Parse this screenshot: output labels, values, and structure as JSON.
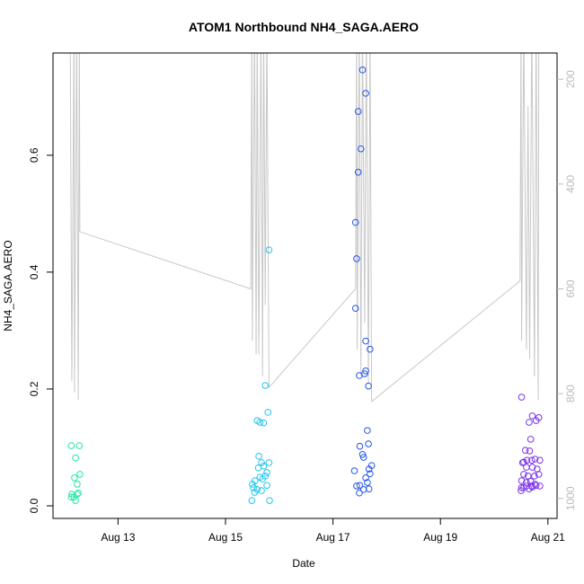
{
  "chart_data": {
    "type": "scatter",
    "title": "ATOM1 Northbound NH4_SAGA.AERO",
    "xlabel": "Date",
    "ylabel": "NH4_SAGA.AERO",
    "xlim": [
      11.79,
      21.17
    ],
    "xticks": [
      {
        "value": 13,
        "label": "Aug 13"
      },
      {
        "value": 15,
        "label": "Aug 15"
      },
      {
        "value": 17,
        "label": "Aug 17"
      },
      {
        "value": 19,
        "label": "Aug 19"
      },
      {
        "value": 21,
        "label": "Aug 21"
      }
    ],
    "ylim": [
      -0.0215,
      0.775
    ],
    "yticks": [
      {
        "value": 0,
        "label": "0.0"
      },
      0.2,
      0.4,
      0.6
    ],
    "y2lim": [
      1038,
      150
    ],
    "y2ticks": [
      200,
      400,
      600,
      800,
      1000
    ],
    "series": [
      {
        "color": "#1fe8a8",
        "x": [
          12.13,
          12.28,
          12.21,
          12.29,
          12.19,
          12.24,
          12.14,
          12.18,
          12.26,
          12.13,
          12.21,
          12.24
        ],
        "values": [
          0.103,
          0.103,
          0.082,
          0.054,
          0.048,
          0.037,
          0.02,
          0.015,
          0.022,
          0.015,
          0.009,
          0.02
        ]
      },
      {
        "color": "#22c4ec",
        "x": [
          15.81,
          15.74,
          15.79,
          15.59,
          15.71,
          15.64,
          15.62,
          15.67,
          15.71,
          15.61,
          15.81,
          15.77,
          15.55,
          15.5,
          15.52,
          15.59,
          15.67,
          15.77,
          15.69,
          15.49,
          15.82,
          15.64,
          15.74,
          15.54
        ],
        "values": [
          0.438,
          0.206,
          0.16,
          0.146,
          0.142,
          0.143,
          0.085,
          0.074,
          0.068,
          0.065,
          0.074,
          0.057,
          0.043,
          0.037,
          0.031,
          0.028,
          0.026,
          0.035,
          0.046,
          0.009,
          0.009,
          0.049,
          0.051,
          0.023
        ]
      },
      {
        "color": "#2456e8",
        "x": [
          17.55,
          17.61,
          17.47,
          17.52,
          17.47,
          17.42,
          17.44,
          17.42,
          17.61,
          17.69,
          17.61,
          17.59,
          17.49,
          17.66,
          17.64,
          17.66,
          17.5,
          17.55,
          17.57,
          17.72,
          17.67,
          17.69,
          17.4,
          17.61,
          17.5,
          17.57,
          17.44,
          17.67,
          17.49,
          17.64
        ],
        "values": [
          0.746,
          0.706,
          0.675,
          0.611,
          0.571,
          0.485,
          0.423,
          0.338,
          0.282,
          0.268,
          0.231,
          0.226,
          0.223,
          0.205,
          0.129,
          0.106,
          0.102,
          0.088,
          0.083,
          0.069,
          0.063,
          0.055,
          0.06,
          0.048,
          0.035,
          0.028,
          0.034,
          0.029,
          0.022,
          0.04
        ]
      },
      {
        "color": "#7a34e8",
        "x": [
          20.51,
          20.71,
          20.83,
          20.78,
          20.65,
          20.68,
          20.58,
          20.66,
          20.55,
          20.61,
          20.7,
          20.76,
          20.85,
          20.53,
          20.6,
          20.71,
          20.8,
          20.55,
          20.63,
          20.75,
          20.83,
          20.51,
          20.6,
          20.68,
          20.76,
          20.85,
          20.51,
          20.6,
          20.7,
          20.78,
          20.5,
          20.55,
          20.65,
          20.71
        ],
        "values": [
          0.186,
          0.154,
          0.151,
          0.146,
          0.143,
          0.114,
          0.095,
          0.094,
          0.075,
          0.078,
          0.078,
          0.08,
          0.078,
          0.074,
          0.066,
          0.066,
          0.063,
          0.054,
          0.051,
          0.051,
          0.054,
          0.043,
          0.04,
          0.042,
          0.037,
          0.034,
          0.031,
          0.034,
          0.034,
          0.035,
          0.026,
          0.031,
          0.029,
          0.032
        ]
      },
      {
        "type": "line",
        "axis": "y2",
        "color": "#c8c8c8",
        "x": [
          12.11,
          12.14,
          12.18,
          12.19,
          12.23,
          12.26,
          12.28,
          12.29,
          15.47,
          15.49,
          15.5,
          15.54,
          15.57,
          15.59,
          15.62,
          15.66,
          15.69,
          15.71,
          15.74,
          15.77,
          15.81,
          17.42,
          17.44,
          17.45,
          17.49,
          17.52,
          17.55,
          17.59,
          17.62,
          17.66,
          17.69,
          17.72,
          20.48,
          20.5,
          20.51,
          20.55,
          20.6,
          20.63,
          20.66,
          20.7,
          20.75,
          20.78,
          20.82,
          20.83
        ],
        "values": [
          100,
          776,
          100,
          798,
          100,
          812,
          100,
          491,
          600,
          100,
          699,
          100,
          725,
          100,
          725,
          100,
          767,
          100,
          631,
          100,
          788,
          600,
          100,
          716,
          100,
          767,
          100,
          665,
          100,
          781,
          100,
          815,
          585,
          100,
          699,
          100,
          716,
          251,
          733,
          100,
          767,
          100,
          812,
          100
        ]
      }
    ]
  }
}
